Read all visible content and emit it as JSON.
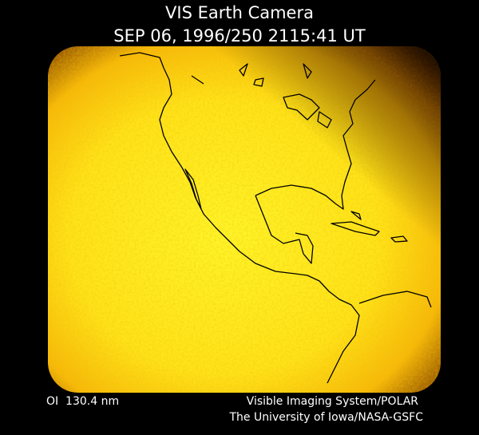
{
  "header": {
    "title": "VIS Earth Camera",
    "timestamp": "SEP 06, 1996/250 2115:41 UT"
  },
  "footer": {
    "wavelength": "OI  130.4 nm",
    "credits": [
      "Visible Imaging System/POLAR",
      "The University of Iowa/NASA-GSFC"
    ]
  }
}
